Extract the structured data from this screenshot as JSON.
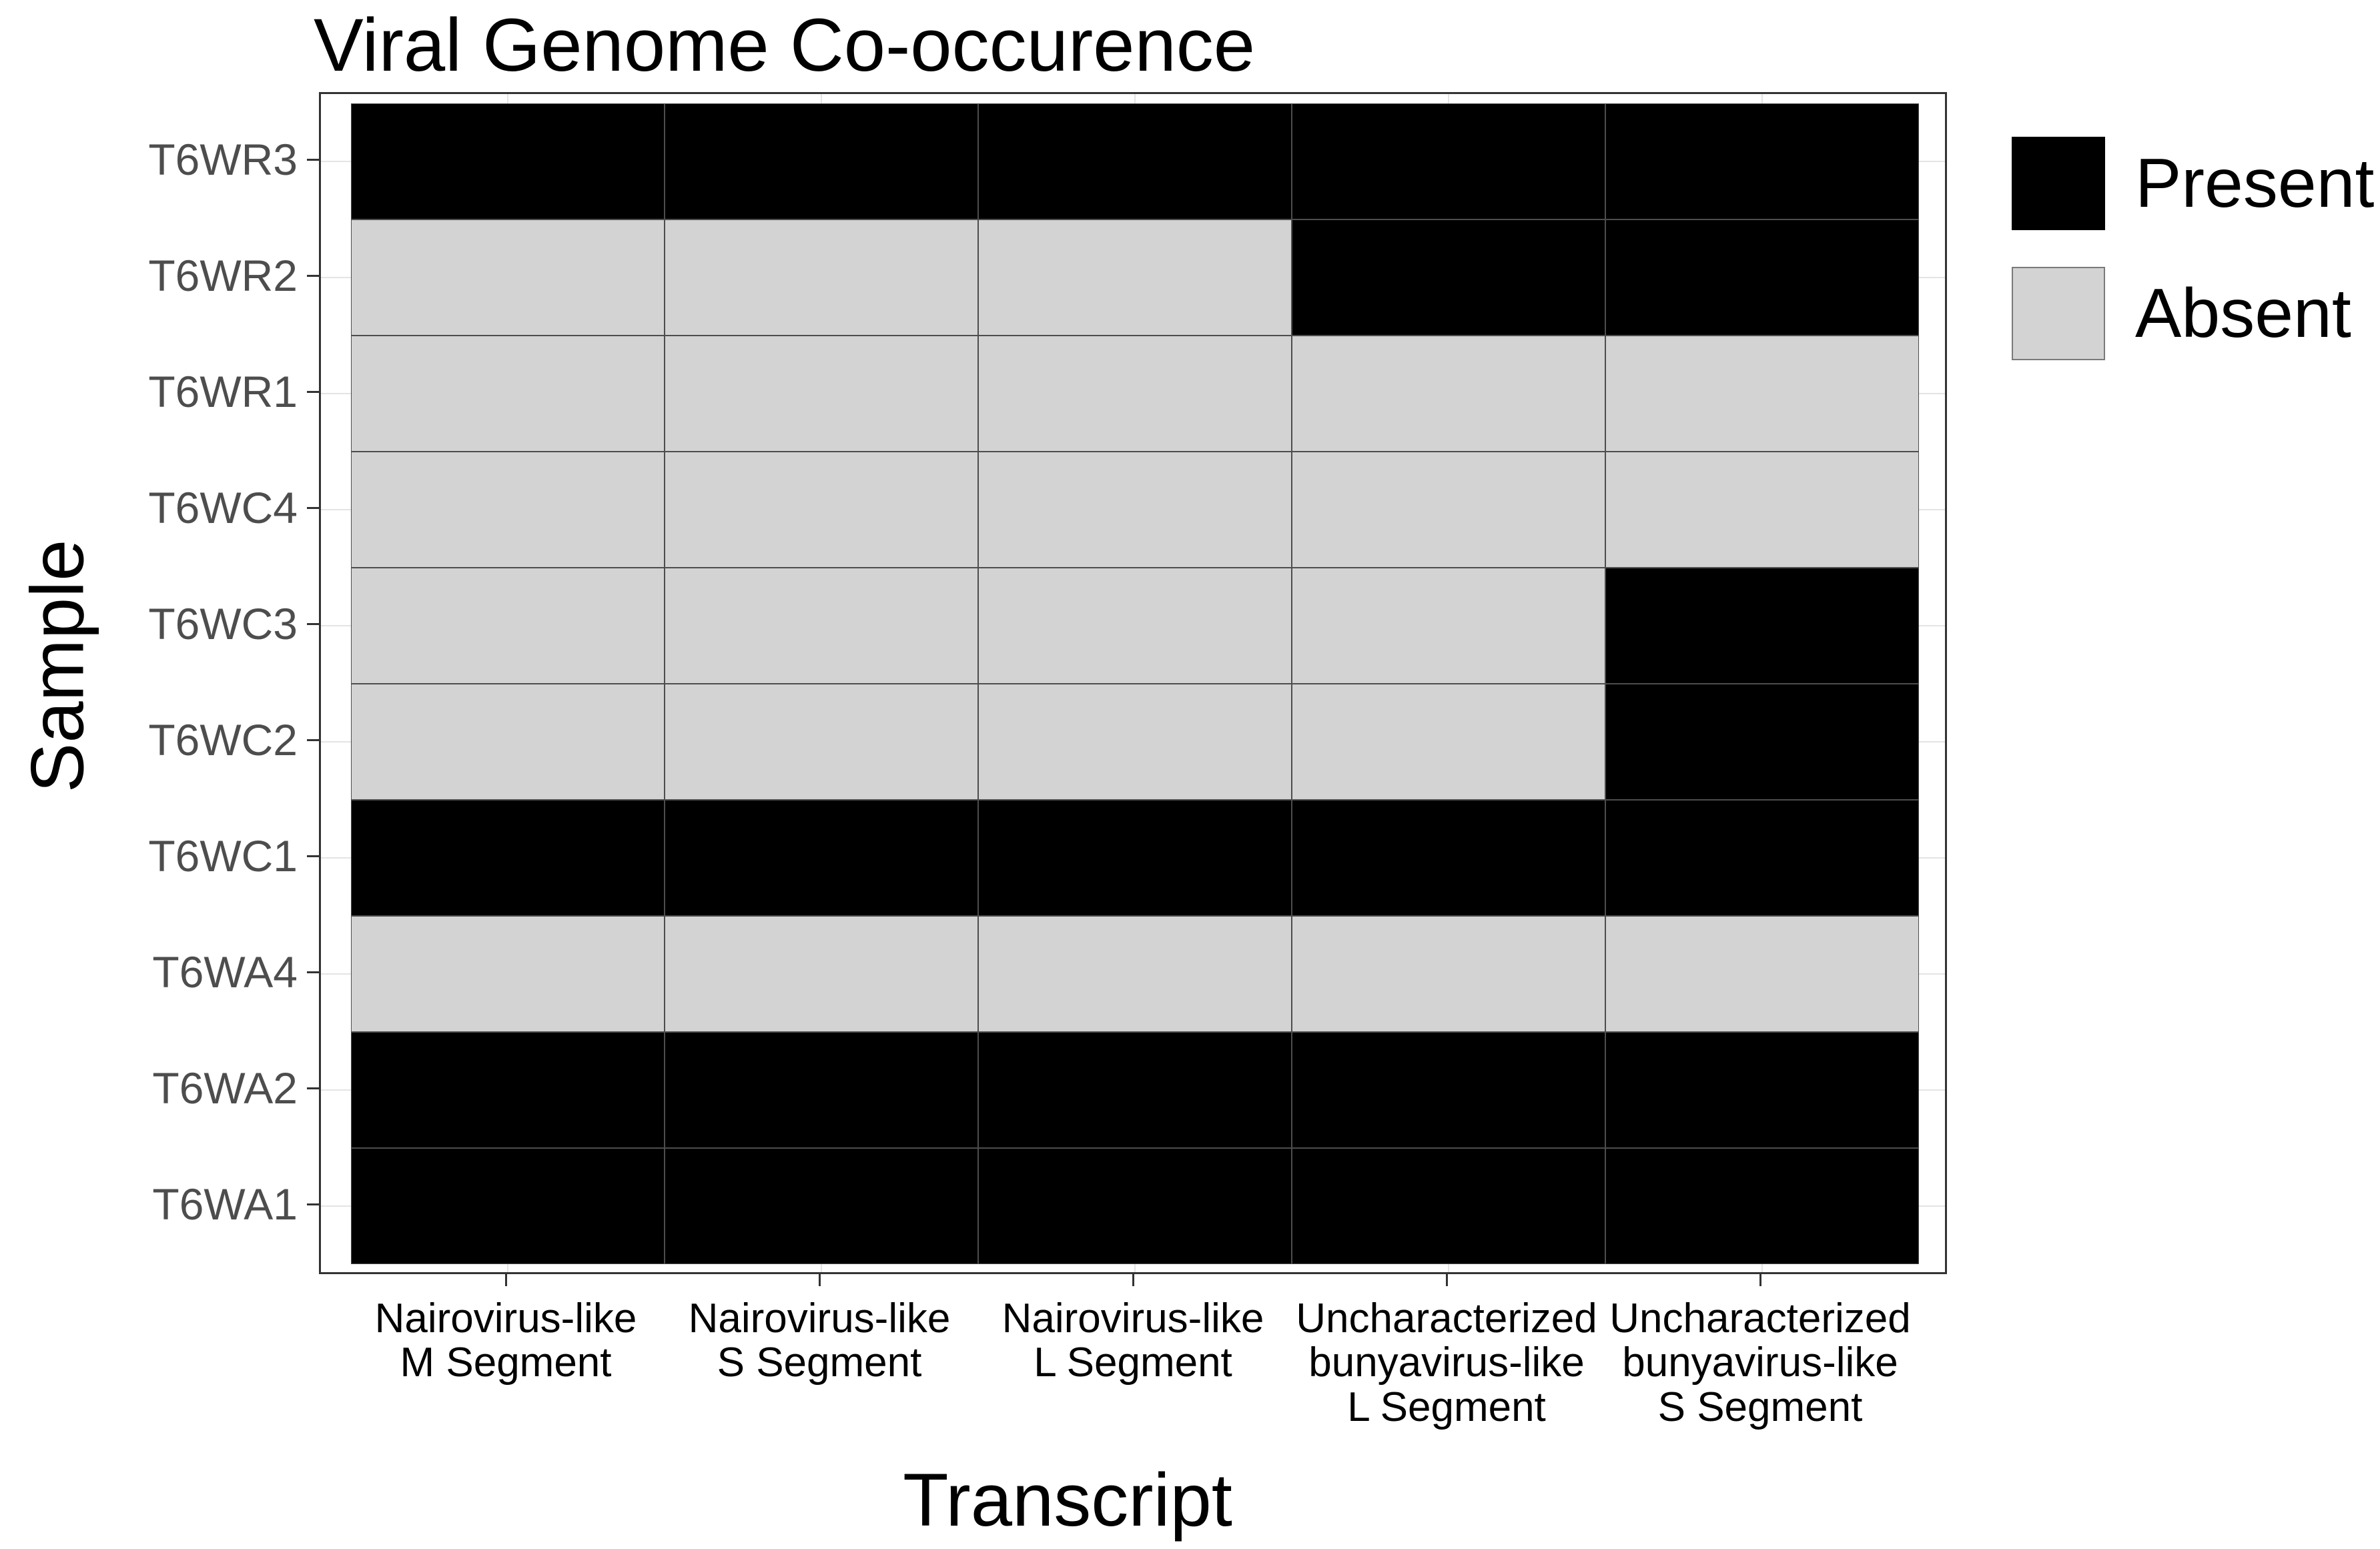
{
  "title": "Viral Genome Co-occurence",
  "axes": {
    "x_title": "Transcript",
    "y_title": "Sample"
  },
  "legend": {
    "position": "right",
    "items": [
      {
        "label": "Present",
        "color": "#000000"
      },
      {
        "label": "Absent",
        "color": "#d3d3d3"
      }
    ]
  },
  "chart_data": {
    "type": "heatmap",
    "title": "Viral Genome Co-occurence",
    "xlabel": "Transcript",
    "ylabel": "Sample",
    "x_categories": [
      "Nairovirus-like M Segment",
      "Nairovirus-like S Segment",
      "Nairovirus-like L Segment",
      "Uncharacterized bunyavirus-like L Segment",
      "Uncharacterized bunyavirus-like S Segment"
    ],
    "x_tick_lines": [
      [
        "Nairovirus-like",
        "M Segment"
      ],
      [
        "Nairovirus-like",
        "S Segment"
      ],
      [
        "Nairovirus-like",
        "L Segment"
      ],
      [
        "Uncharacterized",
        "bunyavirus-like",
        "L Segment"
      ],
      [
        "Uncharacterized",
        "bunyavirus-like",
        "S Segment"
      ]
    ],
    "y_categories_top_to_bottom": [
      "T6WR3",
      "T6WR2",
      "T6WR1",
      "T6WC4",
      "T6WC3",
      "T6WC2",
      "T6WC1",
      "T6WA4",
      "T6WA2",
      "T6WA1"
    ],
    "value_labels": {
      "1": "Present",
      "0": "Absent"
    },
    "matrix_rows_top_to_bottom": [
      [
        1,
        1,
        1,
        1,
        1
      ],
      [
        0,
        0,
        0,
        1,
        1
      ],
      [
        0,
        0,
        0,
        0,
        0
      ],
      [
        0,
        0,
        0,
        0,
        0
      ],
      [
        0,
        0,
        0,
        0,
        1
      ],
      [
        0,
        0,
        0,
        0,
        1
      ],
      [
        1,
        1,
        1,
        1,
        1
      ],
      [
        0,
        0,
        0,
        0,
        0
      ],
      [
        1,
        1,
        1,
        1,
        1
      ],
      [
        1,
        1,
        1,
        1,
        1
      ]
    ],
    "colors": {
      "present": "#000000",
      "absent": "#d3d3d3"
    },
    "legend_position": "right",
    "grid": "faint major gridlines at category centers, drawn behind tiles"
  }
}
